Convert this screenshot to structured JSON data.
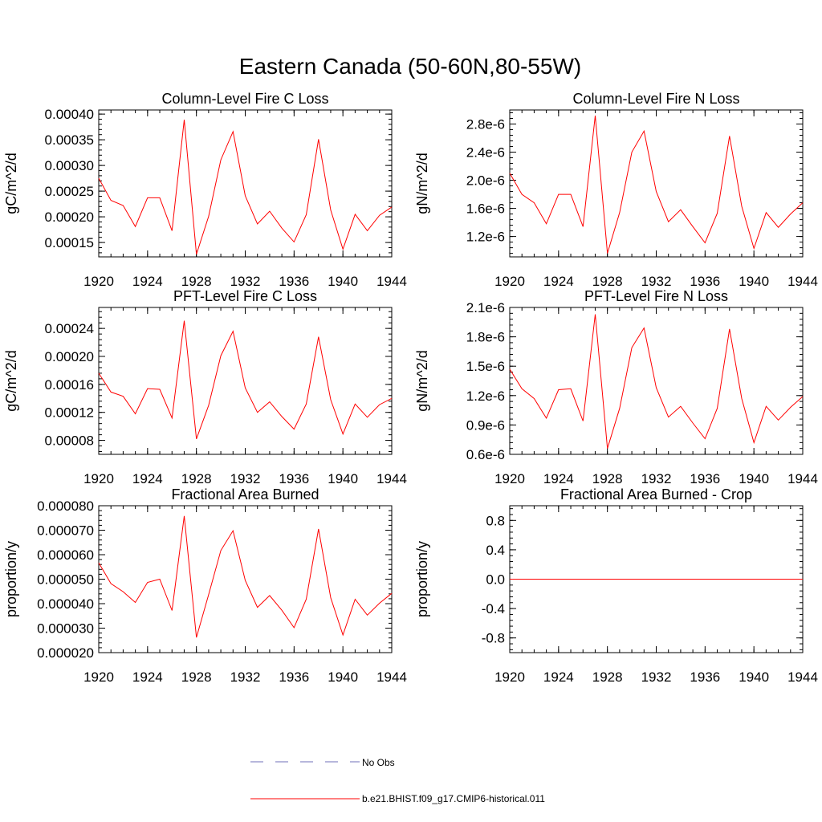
{
  "title": "Eastern Canada (50-60N,80-55W)",
  "colors": {
    "series": "#ff0000",
    "obs": "#6f6fb8",
    "axis": "#000000"
  },
  "legend": {
    "obs_label": "No Obs",
    "model_label": "b.e21.BHIST.f09_g17.CMIP6-historical.011"
  },
  "chart_data": [
    {
      "type": "line",
      "title": "Column-Level Fire C Loss",
      "ylabel": "gC/m^2/d",
      "xlim": [
        1920,
        1944
      ],
      "ylim": [
        0.000122,
        0.000408
      ],
      "xticks": [
        1920,
        1924,
        1928,
        1932,
        1936,
        1940,
        1944
      ],
      "xtick_labels": [
        "1920",
        "1924",
        "1928",
        "1932",
        "1936",
        "1940",
        "1944"
      ],
      "yticks": [
        0.00015,
        0.0002,
        0.00025,
        0.0003,
        0.00035,
        0.0004
      ],
      "ytick_labels": [
        "0.00015",
        "0.00020",
        "0.00025",
        "0.00030",
        "0.00035",
        "0.00040"
      ],
      "x": [
        1920,
        1921,
        1922,
        1923,
        1924,
        1925,
        1926,
        1927,
        1928,
        1929,
        1930,
        1931,
        1932,
        1933,
        1934,
        1935,
        1936,
        1937,
        1938,
        1939,
        1940,
        1941,
        1942,
        1943,
        1944
      ],
      "values": [
        0.000275,
        0.000232,
        0.000222,
        0.000181,
        0.000237,
        0.000237,
        0.000173,
        0.000389,
        0.000127,
        0.000201,
        0.000311,
        0.000366,
        0.000241,
        0.000186,
        0.000211,
        0.000178,
        0.000151,
        0.000204,
        0.000351,
        0.000213,
        0.000137,
        0.000205,
        0.000173,
        0.000203,
        0.000219
      ]
    },
    {
      "type": "line",
      "title": "Column-Level Fire N Loss",
      "ylabel": "gN/m^2/d",
      "xlim": [
        1920,
        1944
      ],
      "ylim": [
        9.1e-07,
        3e-06
      ],
      "xticks": [
        1920,
        1924,
        1928,
        1932,
        1936,
        1940,
        1944
      ],
      "xtick_labels": [
        "1920",
        "1924",
        "1928",
        "1932",
        "1936",
        "1940",
        "1944"
      ],
      "yticks": [
        1.2e-06,
        1.6e-06,
        2e-06,
        2.4e-06,
        2.8e-06
      ],
      "ytick_labels": [
        "1.2e-6",
        "1.6e-6",
        "2.0e-6",
        "2.4e-6",
        "2.8e-6"
      ],
      "x": [
        1920,
        1921,
        1922,
        1923,
        1924,
        1925,
        1926,
        1927,
        1928,
        1929,
        1930,
        1931,
        1932,
        1933,
        1934,
        1935,
        1936,
        1937,
        1938,
        1939,
        1940,
        1941,
        1942,
        1943,
        1944
      ],
      "values": [
        2.1e-06,
        1.8e-06,
        1.68e-06,
        1.38e-06,
        1.8e-06,
        1.8e-06,
        1.34e-06,
        2.92e-06,
        9.6e-07,
        1.54e-06,
        2.4e-06,
        2.7e-06,
        1.84e-06,
        1.41e-06,
        1.58e-06,
        1.34e-06,
        1.11e-06,
        1.53e-06,
        2.63e-06,
        1.63e-06,
        1.03e-06,
        1.54e-06,
        1.33e-06,
        1.52e-06,
        1.68e-06
      ]
    },
    {
      "type": "line",
      "title": "PFT-Level Fire C Loss",
      "ylabel": "gC/m^2/d",
      "xlim": [
        1920,
        1944
      ],
      "ylim": [
        6e-05,
        0.00027
      ],
      "xticks": [
        1920,
        1924,
        1928,
        1932,
        1936,
        1940,
        1944
      ],
      "xtick_labels": [
        "1920",
        "1924",
        "1928",
        "1932",
        "1936",
        "1940",
        "1944"
      ],
      "yticks": [
        8e-05,
        0.00012,
        0.00016,
        0.0002,
        0.00024
      ],
      "ytick_labels": [
        "0.00008",
        "0.00012",
        "0.00016",
        "0.00020",
        "0.00024"
      ],
      "x": [
        1920,
        1921,
        1922,
        1923,
        1924,
        1925,
        1926,
        1927,
        1928,
        1929,
        1930,
        1931,
        1932,
        1933,
        1934,
        1935,
        1936,
        1937,
        1938,
        1939,
        1940,
        1941,
        1942,
        1943,
        1944
      ],
      "values": [
        0.000176,
        0.000149,
        0.000143,
        0.000118,
        0.000154,
        0.000153,
        0.000112,
        0.000251,
        8.2e-05,
        0.00013,
        0.000201,
        0.000236,
        0.000155,
        0.00012,
        0.000135,
        0.000114,
        9.6e-05,
        0.000132,
        0.000228,
        0.000138,
        8.9e-05,
        0.000132,
        0.000113,
        0.000131,
        0.00014
      ]
    },
    {
      "type": "line",
      "title": "PFT-Level Fire N Loss",
      "ylabel": "gN/m^2/d",
      "xlim": [
        1920,
        1944
      ],
      "ylim": [
        6e-07,
        2.1e-06
      ],
      "xticks": [
        1920,
        1924,
        1928,
        1932,
        1936,
        1940,
        1944
      ],
      "xtick_labels": [
        "1920",
        "1924",
        "1928",
        "1932",
        "1936",
        "1940",
        "1944"
      ],
      "yticks": [
        6e-07,
        9e-07,
        1.2e-06,
        1.5e-06,
        1.8e-06,
        2.1e-06
      ],
      "ytick_labels": [
        "0.6e-6",
        "0.9e-6",
        "1.2e-6",
        "1.5e-6",
        "1.8e-6",
        "2.1e-6"
      ],
      "x": [
        1920,
        1921,
        1922,
        1923,
        1924,
        1925,
        1926,
        1927,
        1928,
        1929,
        1930,
        1931,
        1932,
        1933,
        1934,
        1935,
        1936,
        1937,
        1938,
        1939,
        1940,
        1941,
        1942,
        1943,
        1944
      ],
      "values": [
        1.47e-06,
        1.27e-06,
        1.17e-06,
        9.7e-07,
        1.26e-06,
        1.27e-06,
        9.4e-07,
        2.03e-06,
        6.6e-07,
        1.07e-06,
        1.69e-06,
        1.89e-06,
        1.28e-06,
        9.8e-07,
        1.09e-06,
        9.2e-07,
        7.6e-07,
        1.07e-06,
        1.88e-06,
        1.17e-06,
        7.2e-07,
        1.09e-06,
        9.5e-07,
        1.08e-06,
        1.19e-06
      ]
    },
    {
      "type": "line",
      "title": "Fractional Area Burned",
      "ylabel": "proportion/y",
      "xlim": [
        1920,
        1944
      ],
      "ylim": [
        2e-05,
        8e-05
      ],
      "xticks": [
        1920,
        1924,
        1928,
        1932,
        1936,
        1940,
        1944
      ],
      "xtick_labels": [
        "1920",
        "1924",
        "1928",
        "1932",
        "1936",
        "1940",
        "1944"
      ],
      "yticks": [
        2e-05,
        3e-05,
        4e-05,
        5e-05,
        6e-05,
        7e-05,
        8e-05
      ],
      "ytick_labels": [
        "0.000020",
        "0.000030",
        "0.000040",
        "0.000050",
        "0.000060",
        "0.000070",
        "0.000080"
      ],
      "x": [
        1920,
        1921,
        1922,
        1923,
        1924,
        1925,
        1926,
        1927,
        1928,
        1929,
        1930,
        1931,
        1932,
        1933,
        1934,
        1935,
        1936,
        1937,
        1938,
        1939,
        1940,
        1941,
        1942,
        1943,
        1944
      ],
      "values": [
        5.67e-05,
        4.82e-05,
        4.49e-05,
        4.05e-05,
        4.87e-05,
        5e-05,
        3.72e-05,
        7.58e-05,
        2.62e-05,
        4.37e-05,
        6.17e-05,
        6.98e-05,
        4.95e-05,
        3.85e-05,
        4.33e-05,
        3.73e-05,
        3.02e-05,
        4.18e-05,
        7.05e-05,
        4.24e-05,
        2.72e-05,
        4.18e-05,
        3.53e-05,
        4.02e-05,
        4.42e-05
      ]
    },
    {
      "type": "line",
      "title": "Fractional Area Burned - Crop",
      "ylabel": "proportion/y",
      "xlim": [
        1920,
        1944
      ],
      "ylim": [
        -1.0,
        1.0
      ],
      "xticks": [
        1920,
        1924,
        1928,
        1932,
        1936,
        1940,
        1944
      ],
      "xtick_labels": [
        "1920",
        "1924",
        "1928",
        "1932",
        "1936",
        "1940",
        "1944"
      ],
      "yticks": [
        -0.8,
        -0.4,
        0.0,
        0.4,
        0.8
      ],
      "ytick_labels": [
        "-0.8",
        "-0.4",
        "0.0",
        "0.4",
        "0.8"
      ],
      "x": [
        1920,
        1921,
        1922,
        1923,
        1924,
        1925,
        1926,
        1927,
        1928,
        1929,
        1930,
        1931,
        1932,
        1933,
        1934,
        1935,
        1936,
        1937,
        1938,
        1939,
        1940,
        1941,
        1942,
        1943,
        1944
      ],
      "values": [
        0,
        0,
        0,
        0,
        0,
        0,
        0,
        0,
        0,
        0,
        0,
        0,
        0,
        0,
        0,
        0,
        0,
        0,
        0,
        0,
        0,
        0,
        0,
        0,
        0
      ]
    }
  ]
}
